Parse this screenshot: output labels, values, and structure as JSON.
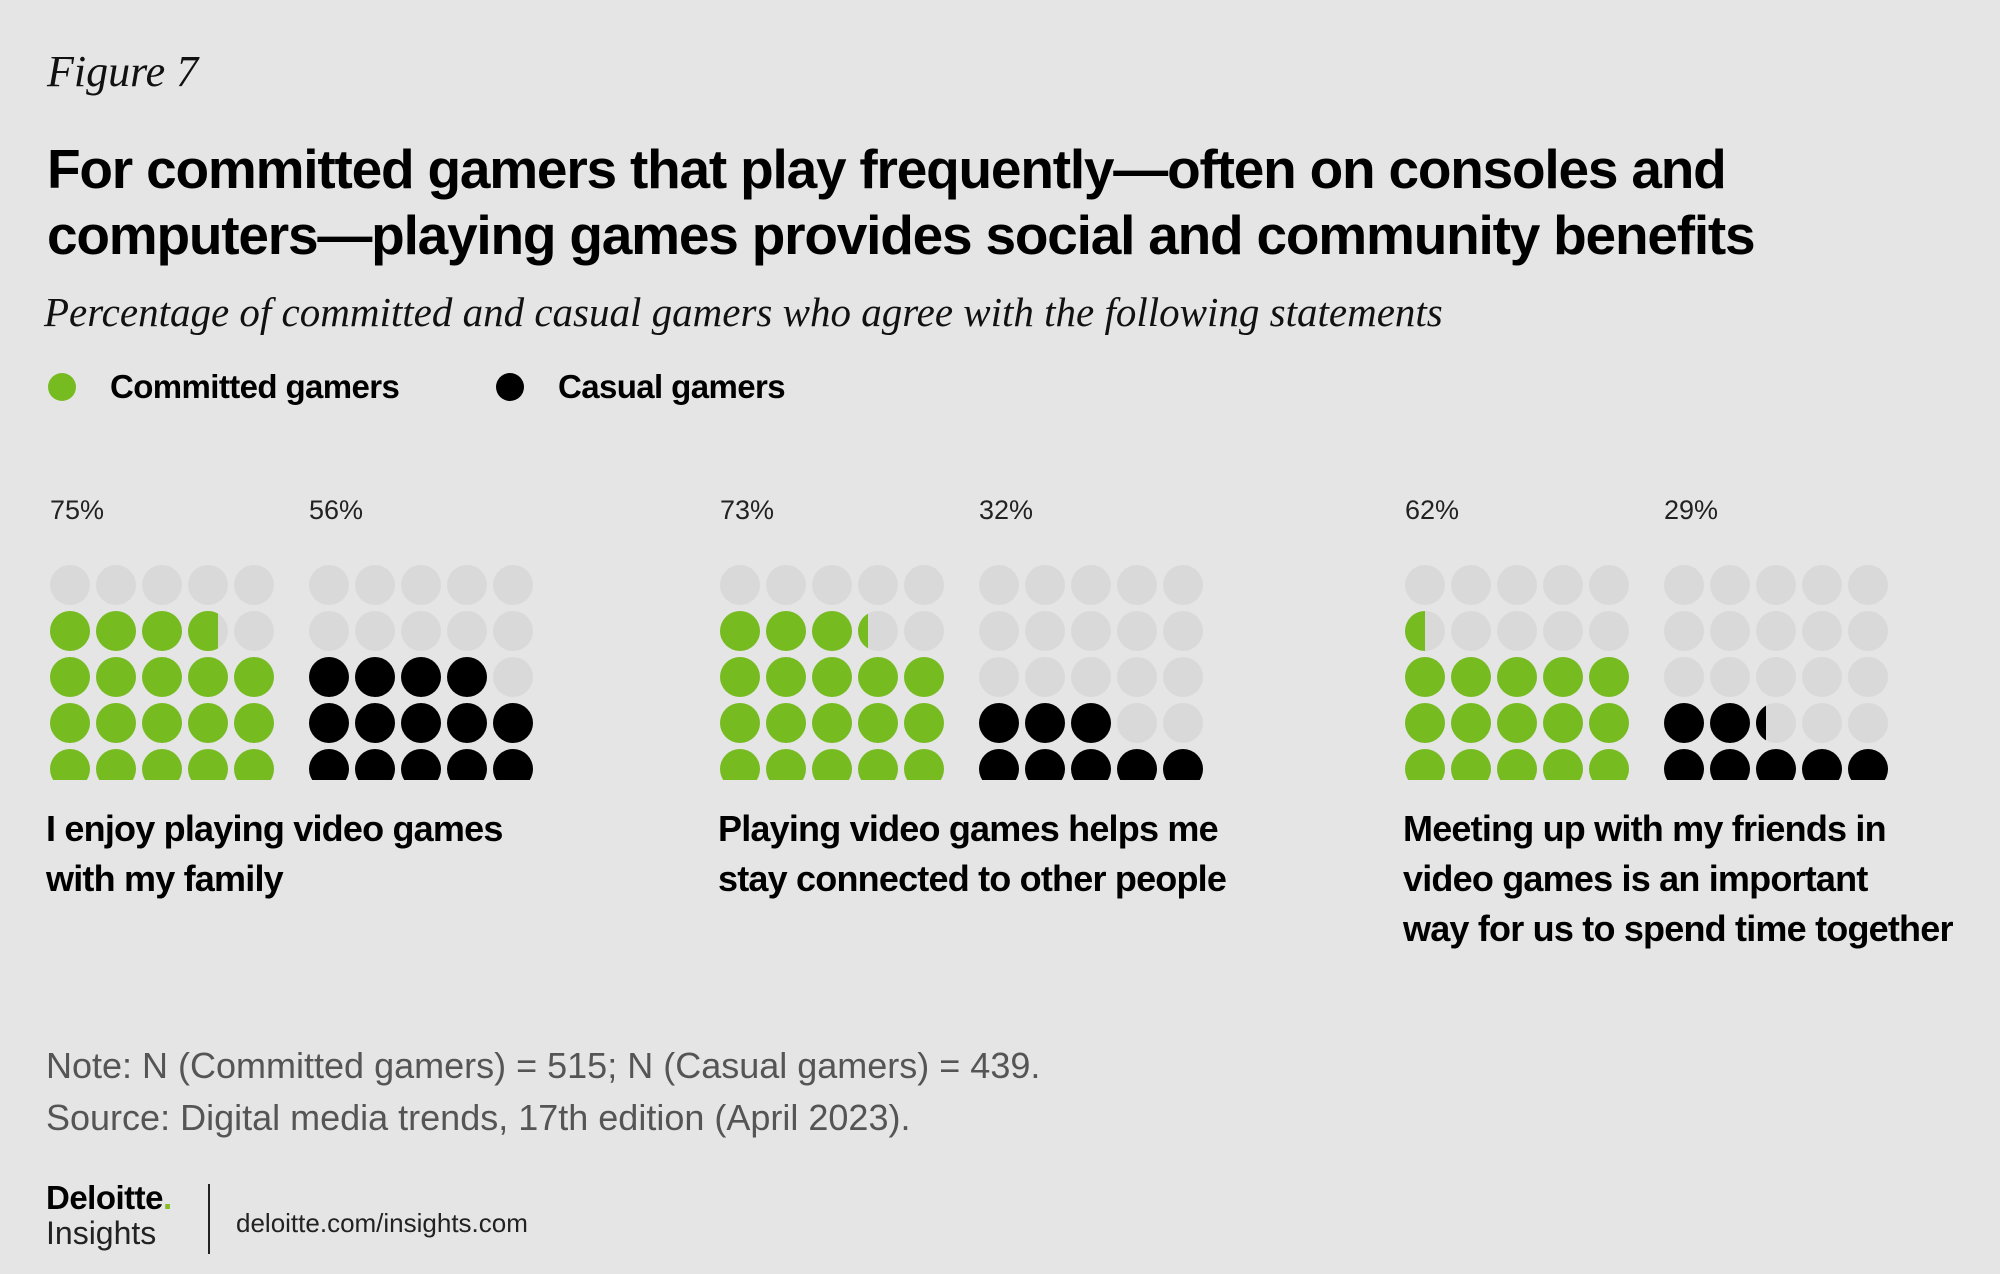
{
  "figure_label": "Figure 7",
  "title": "For committed gamers that play frequently—often on consoles and computers—playing games provides social and community benefits",
  "subtitle": "Percentage of committed and casual gamers who agree with the following statements",
  "colors": {
    "committed": "#76bc21",
    "casual": "#000000",
    "empty": "#d9d9d9",
    "background": "#e5e5e5"
  },
  "legend": [
    {
      "label": "Committed gamers",
      "color": "#76bc21"
    },
    {
      "label": "Casual gamers",
      "color": "#000000"
    }
  ],
  "chart_data": {
    "type": "waffle",
    "dots_per_chart": 25,
    "series": [
      "Committed gamers",
      "Casual gamers"
    ],
    "groups": [
      {
        "statement": "I enjoy playing video games with my family",
        "committed": 75,
        "casual": 56,
        "committed_label": "75%",
        "casual_label": "56%"
      },
      {
        "statement": "Playing video games helps me stay connected to other people",
        "committed": 73,
        "casual": 32,
        "committed_label": "73%",
        "casual_label": "32%"
      },
      {
        "statement": "Meeting up with my friends in video games is an important way for us to spend time together",
        "committed": 62,
        "casual": 29,
        "committed_label": "62%",
        "casual_label": "29%"
      }
    ]
  },
  "statements": {
    "s1": {
      "line1": "I enjoy playing video games",
      "line2": "with my family",
      "line3": ""
    },
    "s2": {
      "line1": "Playing video games helps me",
      "line2": "stay connected to other people",
      "line3": ""
    },
    "s3": {
      "line1": "Meeting up with my friends in",
      "line2": "video games is an important",
      "line3": "way for us to spend time together"
    }
  },
  "note": {
    "line1": "Note: N (Committed gamers) = 515; N (Casual gamers) = 439.",
    "line2": "Source: Digital media trends, 17th edition (April 2023)."
  },
  "footer": {
    "brand": "Deloitte",
    "brand_dot": ".",
    "sub": "Insights",
    "url": "deloitte.com/insights.com"
  }
}
